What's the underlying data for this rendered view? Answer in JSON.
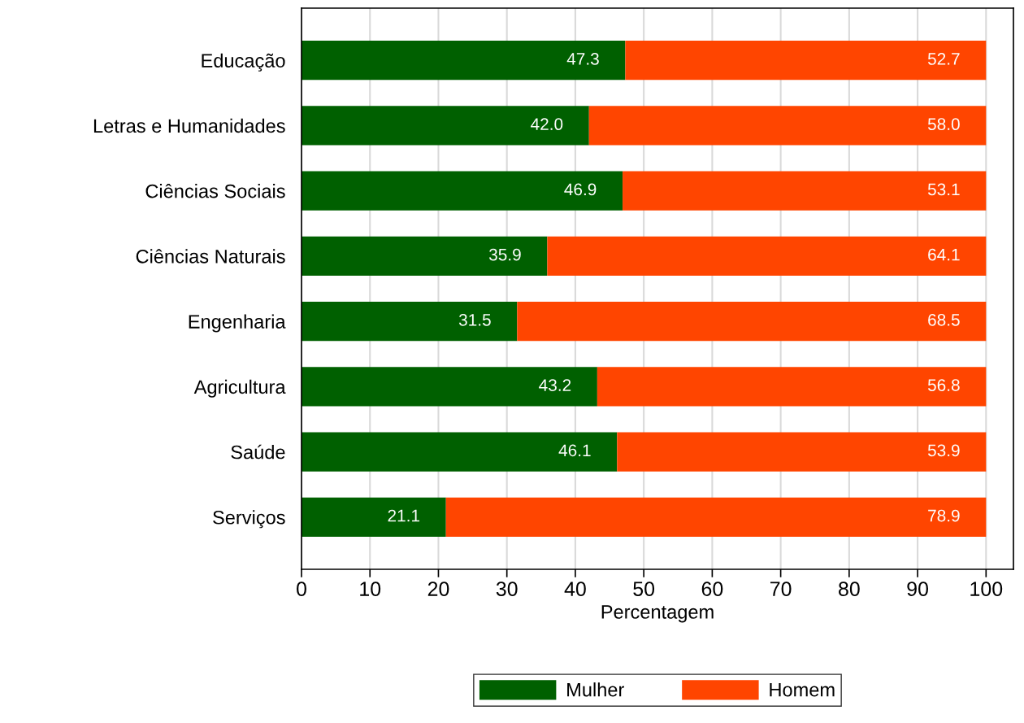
{
  "chart_data": {
    "type": "bar",
    "orientation": "horizontal",
    "stacked": true,
    "xlabel": "Percentagem",
    "categories": [
      "Educação",
      "Letras e Humanidades",
      "Ciências Sociais",
      "Ciências Naturais",
      "Engenharia",
      "Agricultura",
      "Saúde",
      "Serviços"
    ],
    "series": [
      {
        "name": "Mulher",
        "color": "#006000",
        "values": [
          47.3,
          42.0,
          46.9,
          35.9,
          31.5,
          43.2,
          46.1,
          21.1
        ],
        "value_labels": [
          "47.3",
          "42.0",
          "46.9",
          "35.9",
          "31.5",
          "43.2",
          "46.1",
          "21.1"
        ]
      },
      {
        "name": "Homem",
        "color": "#ff4500",
        "values": [
          52.7,
          58.0,
          53.1,
          64.1,
          68.5,
          56.8,
          53.9,
          78.9
        ],
        "value_labels": [
          "52.7",
          "58.0",
          "53.1",
          "64.1",
          "68.5",
          "56.8",
          "53.9",
          "78.9"
        ]
      }
    ],
    "xlim": [
      0,
      104
    ],
    "xticks": [
      0,
      10,
      20,
      30,
      40,
      50,
      60,
      70,
      80,
      90,
      100
    ],
    "grid": "x",
    "legend": "bottom"
  }
}
